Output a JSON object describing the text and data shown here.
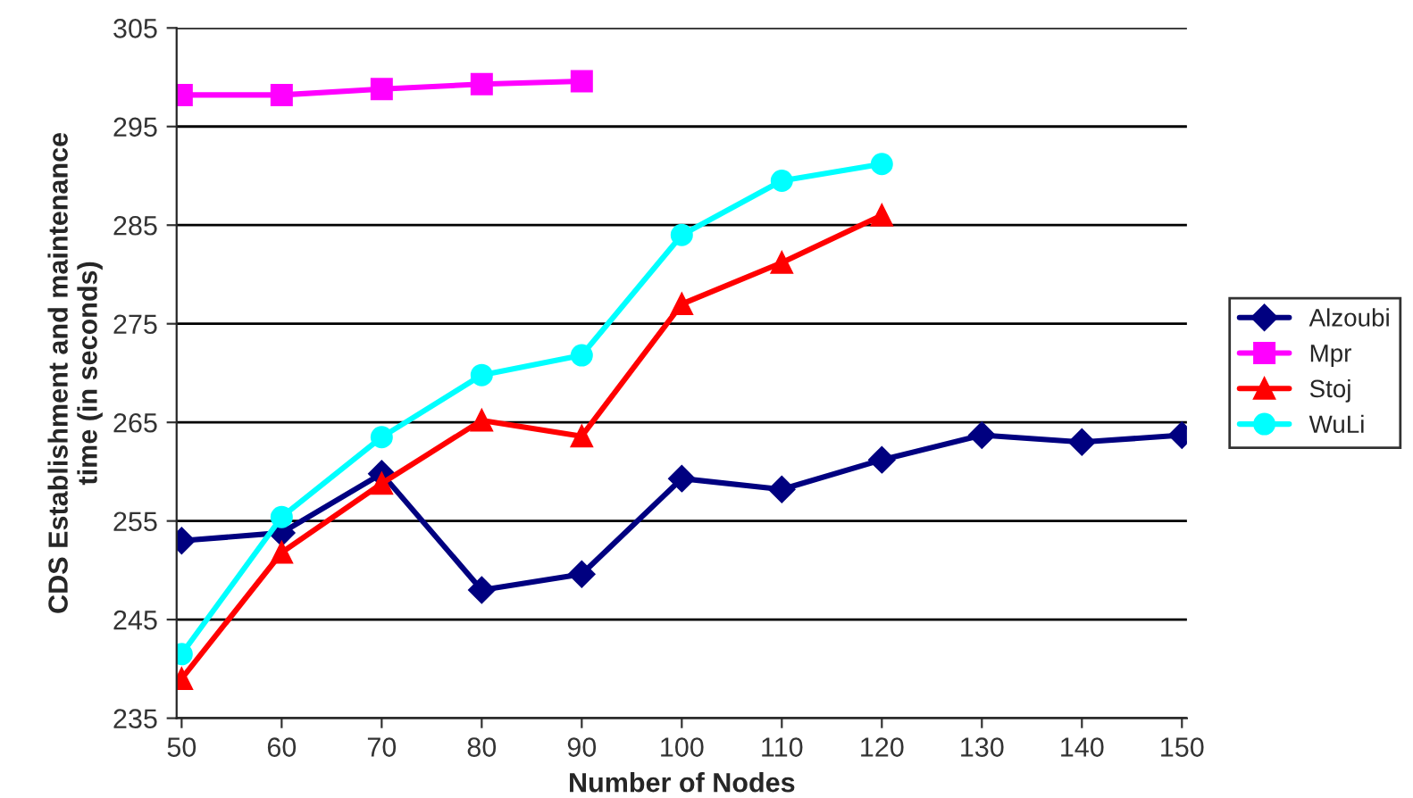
{
  "chart_data": {
    "type": "line",
    "xlabel": "Number of Nodes",
    "ylabel": "CDS Establishment and maintenance\ntime (in seconds)",
    "categories": [
      "50",
      "60",
      "70",
      "80",
      "90",
      "100",
      "110",
      "120",
      "130",
      "140",
      "150"
    ],
    "ylim": [
      235,
      305
    ],
    "yticks": [
      235,
      245,
      255,
      265,
      275,
      285,
      295,
      305
    ],
    "grid": "y",
    "legend": "right",
    "series": [
      {
        "name": "Alzoubi",
        "color": "#000080",
        "marker": "diamond",
        "values": [
          253,
          253.8,
          259.8,
          248,
          249.6,
          259.3,
          258.2,
          261.2,
          263.7,
          263,
          263.7
        ]
      },
      {
        "name": "Mpr",
        "color": "#ff00ff",
        "marker": "square",
        "values": [
          298.2,
          298.2,
          298.8,
          299.3,
          299.6,
          null,
          null,
          null,
          null,
          null,
          null
        ]
      },
      {
        "name": "Stoj",
        "color": "#ff0000",
        "marker": "triangle",
        "values": [
          239,
          251.8,
          258.8,
          265.2,
          263.6,
          277,
          281.2,
          286,
          null,
          null,
          null
        ]
      },
      {
        "name": "WuLi",
        "color": "#00ffff",
        "marker": "circle",
        "values": [
          241.5,
          255.4,
          263.5,
          269.8,
          271.8,
          284,
          289.5,
          291.2,
          null,
          null,
          null
        ]
      }
    ]
  }
}
